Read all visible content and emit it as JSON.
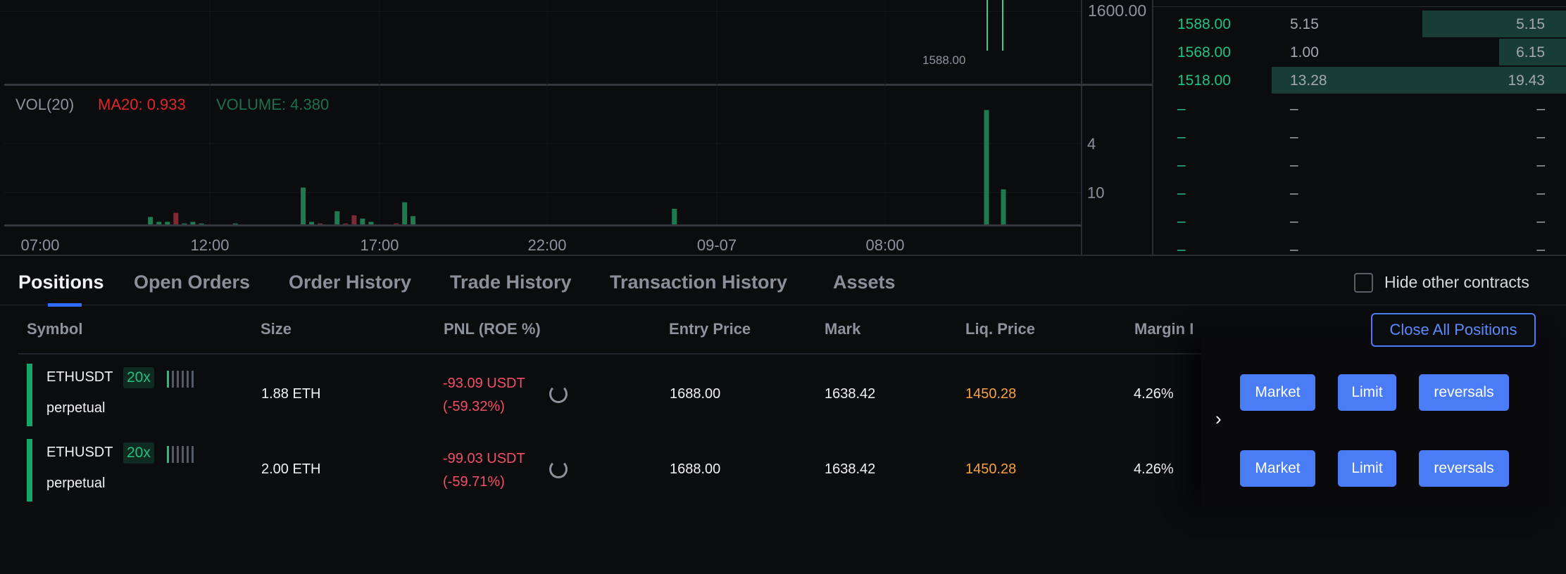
{
  "chart": {
    "price_axis_label": "1600.00",
    "low_price_label": "1588.00",
    "volume_legend": {
      "name": "VOL(20)",
      "ma": "MA20: 0.933",
      "volume": "VOLUME: 4.380",
      "ma_color": "#e0262b",
      "volume_color": "#1f6e4c"
    },
    "volume_axis_ticks": [
      "10",
      "4"
    ],
    "time_labels": [
      "07:00",
      "12:00",
      "17:00",
      "22:00",
      "09-07",
      "08:00"
    ],
    "up_color": "#1f7a52",
    "down_color": "#7e2a34"
  },
  "chart_data": {
    "type": "bar",
    "title": "",
    "ylabel": "",
    "ylim": [
      0,
      16
    ],
    "yticks": [
      4,
      10
    ],
    "grid": true,
    "x_tick_labels": [
      "07:00",
      "12:00",
      "17:00",
      "22:00",
      "09-07",
      "08:00"
    ],
    "series": [
      {
        "values": [
          {
            "t": "09-06 10:15",
            "v": 1.0,
            "dir": "up"
          },
          {
            "t": "09-06 10:30",
            "v": 0.4,
            "dir": "up"
          },
          {
            "t": "09-06 10:45",
            "v": 0.4,
            "dir": "up"
          },
          {
            "t": "09-06 11:00",
            "v": 1.5,
            "dir": "down"
          },
          {
            "t": "09-06 11:15",
            "v": 0.2,
            "dir": "up"
          },
          {
            "t": "09-06 11:30",
            "v": 0.4,
            "dir": "up"
          },
          {
            "t": "09-06 11:45",
            "v": 0.2,
            "dir": "up"
          },
          {
            "t": "09-06 12:45",
            "v": 0.2,
            "dir": "up"
          },
          {
            "t": "09-06 14:45",
            "v": 4.6,
            "dir": "up"
          },
          {
            "t": "09-06 15:00",
            "v": 0.4,
            "dir": "up"
          },
          {
            "t": "09-06 15:15",
            "v": 0.2,
            "dir": "down"
          },
          {
            "t": "09-06 15:45",
            "v": 1.7,
            "dir": "up"
          },
          {
            "t": "09-06 16:00",
            "v": 0.2,
            "dir": "down"
          },
          {
            "t": "09-06 16:15",
            "v": 1.2,
            "dir": "down"
          },
          {
            "t": "09-06 16:30",
            "v": 0.8,
            "dir": "up"
          },
          {
            "t": "09-06 16:45",
            "v": 0.4,
            "dir": "up"
          },
          {
            "t": "09-06 17:30",
            "v": 0.2,
            "dir": "down"
          },
          {
            "t": "09-06 17:45",
            "v": 2.8,
            "dir": "up"
          },
          {
            "t": "09-06 18:00",
            "v": 1.1,
            "dir": "up"
          },
          {
            "t": "09-06 23:30",
            "v": 2.0,
            "dir": "up"
          },
          {
            "t": "09-07 11:00",
            "v": 14.1,
            "dir": "up"
          },
          {
            "t": "09-07 11:30",
            "v": 4.38,
            "dir": "up"
          }
        ]
      }
    ]
  },
  "orderbook": {
    "rows": [
      {
        "price": "1588.00",
        "size": "5.15",
        "total": "5.15",
        "depth_pct": 49
      },
      {
        "price": "1568.00",
        "size": "1.00",
        "total": "6.15",
        "depth_pct": 23
      },
      {
        "price": "1518.00",
        "size": "13.28",
        "total": "19.43",
        "depth_pct": 100
      },
      {
        "price": "–",
        "size": "–",
        "total": "–",
        "depth_pct": 0
      },
      {
        "price": "–",
        "size": "–",
        "total": "–",
        "depth_pct": 0
      },
      {
        "price": "–",
        "size": "–",
        "total": "–",
        "depth_pct": 0
      },
      {
        "price": "–",
        "size": "–",
        "total": "–",
        "depth_pct": 0
      },
      {
        "price": "–",
        "size": "–",
        "total": "–",
        "depth_pct": 0
      },
      {
        "price": "–",
        "size": "–",
        "total": "–",
        "depth_pct": 0
      }
    ],
    "price_color": "#1fc285"
  },
  "tabs": [
    "Positions",
    "Open Orders",
    "Order History",
    "Trade History",
    "Transaction History",
    "Assets"
  ],
  "hide_other_contracts": {
    "label": "Hide other contracts",
    "checked": false
  },
  "table": {
    "headers": [
      "Symbol",
      "Size",
      "PNL (ROE %)",
      "Entry Price",
      "Mark",
      "Liq. Price",
      "Margin I"
    ],
    "close_all": "Close All Positions",
    "rows": [
      {
        "symbol": "ETHUSDT",
        "leverage": "20x",
        "type": "perpetual",
        "size": "1.88 ETH",
        "pnl": "-93.09 USDT",
        "roe": "(-59.32%)",
        "entry": "1688.00",
        "mark": "1638.42",
        "liq": "1450.28",
        "margin": "4.26%"
      },
      {
        "symbol": "ETHUSDT",
        "leverage": "20x",
        "type": "perpetual",
        "size": "2.00 ETH",
        "pnl": "-99.03 USDT",
        "roe": "(-59.71%)",
        "entry": "1688.00",
        "mark": "1638.42",
        "liq": "1450.28",
        "margin": "4.26%"
      }
    ],
    "actions": [
      "Market",
      "Limit",
      "reversals"
    ]
  }
}
